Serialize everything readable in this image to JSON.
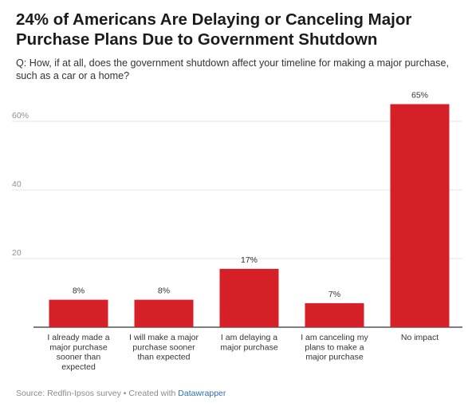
{
  "title": "24% of Americans Are Delaying or Canceling Major Purchase Plans Due to Government Shutdown",
  "subtitle": "Q: How, if at all, does the government shutdown affect your timeline for making a major purchase, such as a car or a home?",
  "footer": {
    "source": "Source: Redfin-Ipsos survey • Created with ",
    "tool": "Datawrapper"
  },
  "colors": {
    "bar": "#d62027",
    "grid": "#e6e6e6",
    "axis": "#333333",
    "tick_text": "#8f8f8f"
  },
  "chart_data": {
    "type": "bar",
    "categories": [
      [
        "I already made a",
        "major purchase",
        "sooner than",
        "expected"
      ],
      [
        "I will make a major",
        "purchase sooner",
        "than expected"
      ],
      [
        "I am delaying a",
        "major purchase"
      ],
      [
        "I am canceling my",
        "plans to make a",
        "major purchase"
      ],
      [
        "No impact"
      ]
    ],
    "values": [
      8,
      8,
      17,
      7,
      65
    ],
    "value_labels": [
      "8%",
      "8%",
      "17%",
      "7%",
      "65%"
    ],
    "yticks": [
      20,
      40,
      60
    ],
    "ytick_labels": [
      "20",
      "40",
      "60%"
    ],
    "ylim": [
      0,
      60
    ],
    "grid": true,
    "xlabel": "",
    "ylabel": ""
  }
}
